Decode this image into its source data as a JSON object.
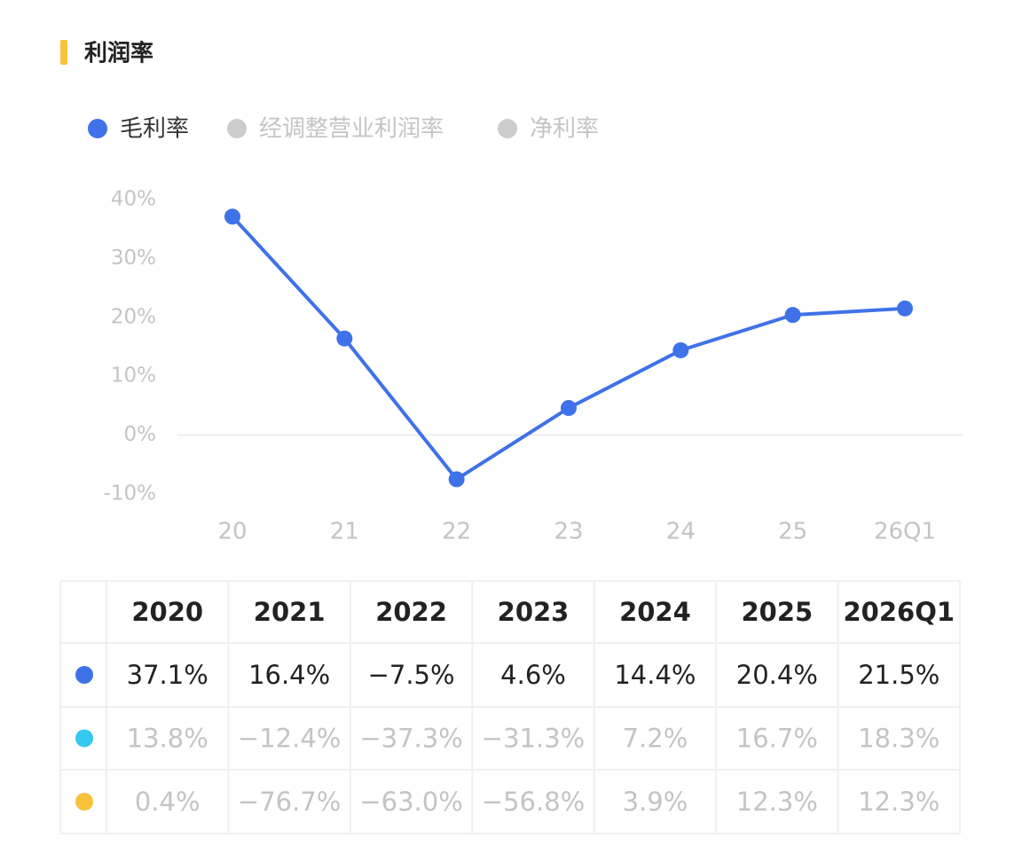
{
  "chart_data": {
    "type": "line",
    "title": "利润率",
    "categories": [
      "20",
      "21",
      "22",
      "23",
      "24",
      "25",
      "26Q1"
    ],
    "series": [
      {
        "name": "毛利率",
        "color": "#3f72e8",
        "visible": true,
        "values": [
          37.1,
          16.4,
          -7.5,
          4.6,
          14.4,
          20.4,
          21.5
        ],
        "value_labels": [
          "37.1%",
          "16.4%",
          "−7.5%",
          "4.6%",
          "14.4%",
          "20.4%",
          "21.5%"
        ]
      },
      {
        "name": "经调整营业利润率",
        "color": "#35c8f0",
        "visible": false,
        "value_labels": [
          "13.8%",
          "−12.4%",
          "−37.3%",
          "−31.3%",
          "7.2%",
          "16.7%",
          "18.3%"
        ]
      },
      {
        "name": "净利率",
        "color": "#f8c23a",
        "visible": false,
        "value_labels": [
          "0.4%",
          "−76.7%",
          "−63.0%",
          "−56.8%",
          "3.9%",
          "12.3%",
          "12.3%"
        ]
      }
    ],
    "inactive_color": "#cccccc",
    "ylim": [
      -10,
      40
    ],
    "yticks": [
      {
        "value": -10,
        "label": "-10%"
      },
      {
        "value": 0,
        "label": "0%"
      },
      {
        "value": 10,
        "label": "10%"
      },
      {
        "value": 20,
        "label": "20%"
      },
      {
        "value": 30,
        "label": "30%"
      },
      {
        "value": 40,
        "label": "40%"
      }
    ],
    "grid": false,
    "table_columns": [
      "2020",
      "2021",
      "2022",
      "2023",
      "2024",
      "2025",
      "2026Q1"
    ]
  }
}
